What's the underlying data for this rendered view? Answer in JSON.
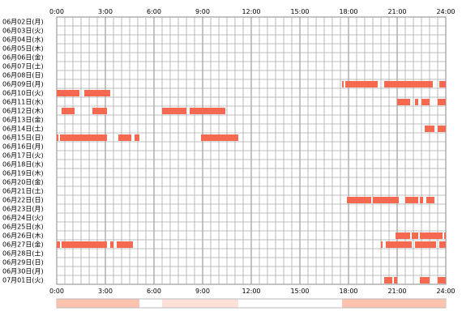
{
  "chart_data": {
    "type": "heatmap",
    "title": "",
    "xlabel": "",
    "ylabel": "",
    "x_range_hours": [
      0,
      24
    ],
    "grid": true,
    "x_ticks": [
      {
        "hour": 0,
        "label": "0:00"
      },
      {
        "hour": 3,
        "label": "3:00"
      },
      {
        "hour": 6,
        "label": "6:00"
      },
      {
        "hour": 9,
        "label": "9:00"
      },
      {
        "hour": 12,
        "label": "12:00"
      },
      {
        "hour": 15,
        "label": "15:00"
      },
      {
        "hour": 18,
        "label": "18:00"
      },
      {
        "hour": 21,
        "label": "21:00"
      },
      {
        "hour": 24,
        "label": "24:00"
      }
    ],
    "colors": {
      "bar": "#f4694f",
      "bar_light": "#f7a070",
      "grid_major": "#888888",
      "grid_minor": "#aaaaaa",
      "summary_light": "#fde0d8",
      "summary_medium": "#fbc2b0"
    },
    "rows": [
      {
        "date": "06月02日(月)",
        "segments": []
      },
      {
        "date": "06月03日(火)",
        "segments": []
      },
      {
        "date": "06月04日(水)",
        "segments": []
      },
      {
        "date": "06月05日(木)",
        "segments": []
      },
      {
        "date": "06月06日(金)",
        "segments": []
      },
      {
        "date": "06月07日(土)",
        "segments": []
      },
      {
        "date": "06月08日(日)",
        "segments": []
      },
      {
        "date": "06月09日(月)",
        "segments": [
          [
            17.6,
            17.7
          ],
          [
            17.8,
            19.8
          ],
          [
            20.2,
            23.2
          ],
          [
            23.6,
            24.0
          ]
        ]
      },
      {
        "date": "06月10日(火)",
        "segments": [
          [
            0.0,
            1.4
          ],
          [
            1.7,
            3.3
          ]
        ]
      },
      {
        "date": "06月11日(水)",
        "segments": [
          [
            21.0,
            21.8
          ],
          [
            22.1,
            22.3
          ],
          [
            22.5,
            23.0
          ],
          [
            23.5,
            24.0
          ]
        ]
      },
      {
        "date": "06月12日(木)",
        "segments": [
          [
            0.3,
            1.1
          ],
          [
            2.2,
            3.1
          ],
          [
            6.5,
            8.0
          ],
          [
            8.2,
            10.4
          ]
        ]
      },
      {
        "date": "06月13日(金)",
        "segments": []
      },
      {
        "date": "06月14日(土)",
        "segments": [
          [
            22.7,
            23.3
          ],
          [
            23.5,
            24.0
          ]
        ]
      },
      {
        "date": "06月15日(日)",
        "segments": [
          [
            0.0,
            0.1
          ],
          [
            0.2,
            3.1
          ],
          [
            3.8,
            4.6
          ],
          [
            4.8,
            5.1
          ],
          [
            8.9,
            11.2
          ]
        ]
      },
      {
        "date": "06月16日(月)",
        "segments": []
      },
      {
        "date": "06月17日(火)",
        "segments": []
      },
      {
        "date": "06月18日(水)",
        "segments": []
      },
      {
        "date": "06月19日(木)",
        "segments": []
      },
      {
        "date": "06月20日(金)",
        "segments": []
      },
      {
        "date": "06月21日(土)",
        "segments": []
      },
      {
        "date": "06月22日(日)",
        "segments": [
          [
            17.9,
            19.4
          ],
          [
            19.5,
            21.1
          ],
          [
            21.5,
            22.3
          ],
          [
            22.4,
            22.6
          ],
          [
            22.8,
            23.3
          ]
        ]
      },
      {
        "date": "06月23日(月)",
        "segments": []
      },
      {
        "date": "06月24日(火)",
        "segments": []
      },
      {
        "date": "06月25日(水)",
        "segments": []
      },
      {
        "date": "06月26日(木)",
        "segments": [
          [
            20.9,
            21.8
          ],
          [
            21.9,
            22.3
          ],
          [
            22.4,
            23.8
          ],
          [
            23.9,
            24.0
          ]
        ]
      },
      {
        "date": "06月27日(金)",
        "segments": [
          [
            0.0,
            0.2
          ],
          [
            0.3,
            3.1
          ],
          [
            3.3,
            3.5
          ],
          [
            3.7,
            4.7
          ],
          [
            20.0,
            20.1
          ],
          [
            20.3,
            21.9
          ],
          [
            22.1,
            23.4
          ],
          [
            23.6,
            24.0
          ]
        ]
      },
      {
        "date": "06月28日(土)",
        "segments": []
      },
      {
        "date": "06月29日(日)",
        "segments": []
      },
      {
        "date": "06月30日(月)",
        "segments": []
      },
      {
        "date": "07月01日(火)",
        "segments": [
          [
            20.2,
            20.7
          ],
          [
            20.8,
            21.0
          ],
          [
            22.4,
            23.0
          ],
          [
            23.5,
            24.0
          ]
        ]
      }
    ],
    "summary_strip": {
      "segments": [
        {
          "range": [
            0.0,
            5.1
          ],
          "level": "medium"
        },
        {
          "range": [
            6.5,
            11.2
          ],
          "level": "light"
        },
        {
          "range": [
            17.6,
            24.0
          ],
          "level": "medium"
        }
      ]
    }
  }
}
